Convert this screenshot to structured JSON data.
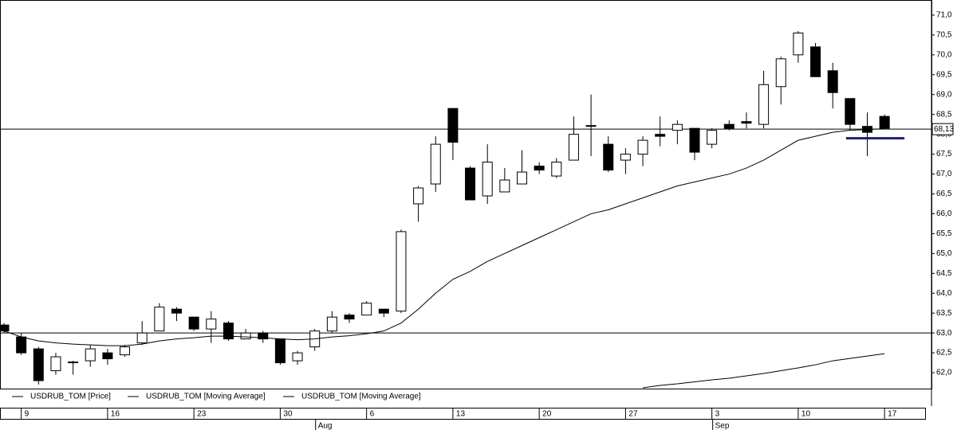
{
  "chart_data": {
    "type": "candlestick",
    "categories": [
      null,
      "9",
      null,
      null,
      null,
      null,
      "16",
      null,
      null,
      null,
      null,
      "23",
      null,
      null,
      null,
      null,
      "30",
      null,
      null,
      null,
      null,
      "6",
      null,
      null,
      null,
      null,
      "13",
      null,
      null,
      null,
      null,
      "20",
      null,
      null,
      null,
      null,
      "27",
      null,
      null,
      null,
      null,
      "3",
      null,
      null,
      null,
      null,
      "10",
      null,
      null,
      null,
      null,
      "17"
    ],
    "months": [
      {
        "label": "Aug",
        "index": 18
      },
      {
        "label": "Sep",
        "index": 41
      }
    ],
    "series": [
      {
        "name": "USDRUB_TOM [Price]",
        "type": "candlestick",
        "up_color": "#ffffff",
        "down_color": "#000000",
        "open": [
          63.2,
          62.9,
          62.6,
          62.05,
          62.25,
          62.3,
          62.5,
          62.45,
          62.75,
          63.05,
          63.6,
          63.4,
          63.1,
          63.25,
          62.85,
          63.0,
          62.85,
          62.3,
          62.65,
          63.05,
          63.45,
          63.45,
          63.6,
          63.55,
          66.25,
          66.75,
          68.65,
          67.15,
          66.45,
          66.55,
          66.75,
          67.2,
          66.95,
          67.35,
          68.2,
          67.75,
          67.35,
          67.5,
          68.0,
          68.1,
          68.15,
          67.75,
          68.25,
          68.32,
          68.25,
          69.2,
          70.0,
          70.2,
          69.6,
          68.9,
          68.2,
          68.45
        ],
        "high": [
          63.25,
          63.0,
          62.65,
          62.5,
          62.3,
          62.7,
          62.6,
          62.7,
          63.3,
          63.75,
          63.65,
          63.4,
          63.55,
          63.3,
          63.1,
          63.05,
          62.85,
          62.55,
          63.1,
          63.55,
          63.5,
          63.8,
          63.6,
          65.6,
          66.7,
          67.95,
          68.65,
          67.2,
          67.75,
          67.15,
          67.6,
          67.3,
          67.4,
          68.45,
          69.0,
          67.95,
          67.65,
          67.95,
          68.45,
          68.35,
          68.15,
          68.15,
          68.35,
          68.55,
          69.6,
          69.95,
          70.6,
          70.3,
          69.8,
          68.9,
          68.55,
          68.5
        ],
        "low": [
          63.0,
          62.45,
          61.7,
          61.95,
          61.95,
          62.15,
          62.2,
          62.4,
          62.7,
          63.05,
          63.3,
          63.05,
          62.75,
          62.8,
          62.85,
          62.75,
          62.2,
          62.2,
          62.55,
          63.0,
          63.25,
          63.45,
          63.4,
          63.5,
          65.8,
          66.55,
          67.35,
          66.35,
          66.25,
          66.55,
          66.75,
          67.0,
          66.9,
          67.35,
          67.45,
          67.05,
          67.0,
          67.2,
          67.7,
          67.75,
          67.35,
          67.65,
          68.1,
          68.15,
          68.15,
          68.75,
          69.8,
          69.45,
          68.65,
          68.1,
          67.45,
          68.15
        ],
        "close": [
          63.05,
          62.5,
          61.8,
          62.4,
          62.27,
          62.6,
          62.35,
          62.65,
          63.0,
          63.65,
          63.5,
          63.1,
          63.35,
          62.85,
          63.0,
          62.85,
          62.25,
          62.5,
          63.05,
          63.4,
          63.35,
          63.75,
          63.5,
          65.55,
          66.65,
          67.75,
          67.8,
          66.35,
          67.3,
          66.85,
          67.05,
          67.1,
          67.3,
          68.0,
          68.22,
          67.1,
          67.5,
          67.85,
          67.95,
          68.25,
          67.55,
          68.1,
          68.15,
          68.28,
          69.25,
          69.9,
          70.55,
          69.45,
          69.05,
          68.25,
          68.05,
          68.15
        ]
      },
      {
        "name": "USDRUB_TOM [Moving Average]",
        "type": "line",
        "color": "#000000",
        "values": [
          63.05,
          62.9,
          62.8,
          62.75,
          62.72,
          62.7,
          62.68,
          62.68,
          62.72,
          62.8,
          62.85,
          62.88,
          62.92,
          62.92,
          62.9,
          62.88,
          62.85,
          62.83,
          62.85,
          62.9,
          62.93,
          62.98,
          63.05,
          63.25,
          63.6,
          64.0,
          64.35,
          64.55,
          64.8,
          65.0,
          65.2,
          65.4,
          65.6,
          65.8,
          66.0,
          66.1,
          66.25,
          66.4,
          66.55,
          66.7,
          66.8,
          66.9,
          67.0,
          67.15,
          67.35,
          67.6,
          67.85,
          67.95,
          68.05,
          68.1,
          68.12,
          68.14
        ]
      },
      {
        "name": "USDRUB_TOM [Moving Average]",
        "type": "line",
        "color": "#000000",
        "values": [
          null,
          null,
          null,
          null,
          null,
          null,
          null,
          null,
          null,
          null,
          null,
          null,
          null,
          null,
          null,
          null,
          null,
          null,
          null,
          null,
          null,
          null,
          null,
          null,
          null,
          null,
          null,
          null,
          null,
          null,
          null,
          null,
          null,
          null,
          null,
          null,
          null,
          61.62,
          61.68,
          61.72,
          61.77,
          61.82,
          61.86,
          61.92,
          61.98,
          62.05,
          62.12,
          62.2,
          62.3,
          62.36,
          62.42,
          62.48
        ]
      }
    ],
    "ylim": [
      61.6,
      71.38
    ],
    "yticks": [
      {
        "value": 62,
        "label": "62,0"
      },
      {
        "value": 62.5,
        "label": "62,5"
      },
      {
        "value": 63,
        "label": "63,0"
      },
      {
        "value": 63.5,
        "label": "63,5"
      },
      {
        "value": 64,
        "label": "64,0"
      },
      {
        "value": 64.5,
        "label": "64,5"
      },
      {
        "value": 65,
        "label": "65,0"
      },
      {
        "value": 65.5,
        "label": "65,5"
      },
      {
        "value": 66,
        "label": "66,0"
      },
      {
        "value": 66.5,
        "label": "66,5"
      },
      {
        "value": 67,
        "label": "67,0"
      },
      {
        "value": 67.5,
        "label": "67,5"
      },
      {
        "value": 68,
        "label": "68,0"
      },
      {
        "value": 68.5,
        "label": "68,5"
      },
      {
        "value": 69,
        "label": "69,0"
      },
      {
        "value": 69.5,
        "label": "69,5"
      },
      {
        "value": 70,
        "label": "70,0"
      },
      {
        "value": 70.5,
        "label": "70,5"
      },
      {
        "value": 71,
        "label": "71,0"
      }
    ],
    "hlines": [
      68.13,
      63.0
    ],
    "last_price": {
      "value": 68.13,
      "label": "68,13"
    },
    "trend_segment": {
      "value": 67.9,
      "start": 49,
      "end": 51,
      "color": "#1f1f6b"
    }
  }
}
